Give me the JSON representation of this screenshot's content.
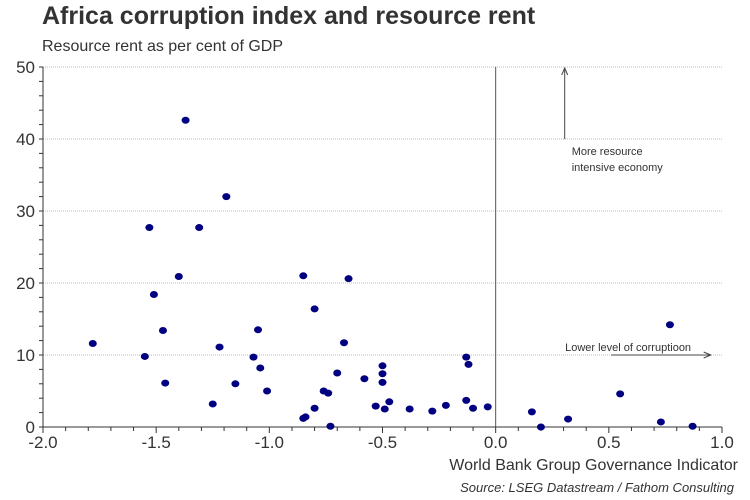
{
  "chart_data": {
    "type": "scatter",
    "title": "Africa corruption index and resource rent",
    "subtitle": "Resource rent as per cent of GDP",
    "xlabel": "World Bank Group Governance Indicator",
    "ylabel": "",
    "source": "Source: LSEG Datastream / Fathom Consulting",
    "xlim": [
      -2.0,
      1.0
    ],
    "ylim": [
      0,
      50
    ],
    "xticks": [
      "-2.0",
      "-1.5",
      "-1.0",
      "-0.5",
      "0.0",
      "0.5",
      "1.0"
    ],
    "yticks": [
      "0",
      "10",
      "20",
      "30",
      "40",
      "50"
    ],
    "grid": "horizontal dotted",
    "color": "#000080",
    "points": [
      [
        -1.78,
        11.6
      ],
      [
        -1.55,
        9.8
      ],
      [
        -1.53,
        27.7
      ],
      [
        -1.51,
        18.4
      ],
      [
        -1.47,
        13.4
      ],
      [
        -1.46,
        6.1
      ],
      [
        -1.4,
        20.9
      ],
      [
        -1.37,
        42.6
      ],
      [
        -1.31,
        27.7
      ],
      [
        -1.25,
        3.2
      ],
      [
        -1.22,
        11.1
      ],
      [
        -1.19,
        32.0
      ],
      [
        -1.15,
        6.0
      ],
      [
        -1.07,
        9.7
      ],
      [
        -1.05,
        13.5
      ],
      [
        -1.04,
        8.2
      ],
      [
        -1.01,
        5.0
      ],
      [
        -0.85,
        21.0
      ],
      [
        -0.85,
        1.2
      ],
      [
        -0.84,
        1.4
      ],
      [
        -0.8,
        2.6
      ],
      [
        -0.8,
        16.4
      ],
      [
        -0.76,
        5.0
      ],
      [
        -0.74,
        4.7
      ],
      [
        -0.73,
        0.1
      ],
      [
        -0.7,
        7.5
      ],
      [
        -0.67,
        11.7
      ],
      [
        -0.65,
        20.6
      ],
      [
        -0.58,
        6.7
      ],
      [
        -0.53,
        2.9
      ],
      [
        -0.5,
        8.5
      ],
      [
        -0.5,
        7.4
      ],
      [
        -0.5,
        6.2
      ],
      [
        -0.49,
        2.5
      ],
      [
        -0.47,
        3.5
      ],
      [
        -0.38,
        2.5
      ],
      [
        -0.28,
        2.2
      ],
      [
        -0.22,
        3.0
      ],
      [
        -0.13,
        9.7
      ],
      [
        -0.12,
        8.7
      ],
      [
        -0.13,
        3.7
      ],
      [
        -0.1,
        2.6
      ],
      [
        -0.035,
        2.8
      ],
      [
        0.16,
        2.1
      ],
      [
        0.2,
        0.0
      ],
      [
        0.32,
        1.1
      ],
      [
        0.55,
        4.6
      ],
      [
        0.73,
        0.7
      ],
      [
        0.77,
        14.2
      ],
      [
        0.87,
        0.1
      ]
    ],
    "annotations": [
      {
        "text_lines": [
          "More resource",
          "intensive economy"
        ],
        "arrow": "up",
        "x": 0.305,
        "y_from": 40,
        "y_to": 50
      },
      {
        "text": "Lower level of corruptioon",
        "arrow": "right",
        "y": 10,
        "x_from": 0.51,
        "x_to": 0.95
      }
    ]
  }
}
